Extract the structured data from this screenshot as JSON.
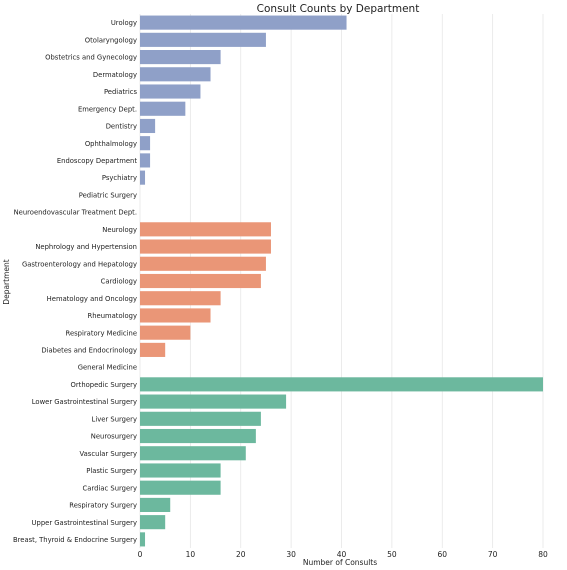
{
  "chart_data": {
    "type": "bar",
    "orientation": "horizontal",
    "title": "Consult Counts by Department",
    "xlabel": "Number of Consults",
    "ylabel": "Department",
    "xlim": [
      0,
      80
    ],
    "xticks": [
      0,
      10,
      20,
      30,
      40,
      50,
      60,
      70,
      80
    ],
    "grid": "vertical",
    "legend": "none",
    "categories": [
      "Urology",
      "Otolaryngology",
      "Obstetrics and Gynecology",
      "Dermatology",
      "Pediatrics",
      "Emergency Dept.",
      "Dentistry",
      "Ophthalmology",
      "Endoscopy Department",
      "Psychiatry",
      "Pediatric Surgery",
      "Neuroendovascular Treatment Dept.",
      "Neurology",
      "Nephrology and Hypertension",
      "Gastroenterology and Hepatology",
      "Cardiology",
      "Hematology and Oncology",
      "Rheumatology",
      "Respiratory Medicine",
      "Diabetes and Endocrinology",
      "General Medicine",
      "Orthopedic Surgery",
      "Lower Gastrointestinal Surgery",
      "Liver Surgery",
      "Neurosurgery",
      "Vascular Surgery",
      "Plastic Surgery",
      "Cardiac Surgery",
      "Respiratory Surgery",
      "Upper Gastrointestinal Surgery",
      "Breast, Thyroid & Endocrine Surgery"
    ],
    "values": [
      41,
      25,
      16,
      14,
      12,
      9,
      3,
      2,
      2,
      1,
      0,
      0,
      26,
      26,
      25,
      24,
      16,
      14,
      10,
      5,
      0,
      80,
      29,
      24,
      23,
      21,
      16,
      16,
      6,
      5,
      1
    ],
    "bar_colors": [
      "#8fa0c8",
      "#8fa0c8",
      "#8fa0c8",
      "#8fa0c8",
      "#8fa0c8",
      "#8fa0c8",
      "#8fa0c8",
      "#8fa0c8",
      "#8fa0c8",
      "#8fa0c8",
      "#8fa0c8",
      "#8fa0c8",
      "#ea9677",
      "#ea9677",
      "#ea9677",
      "#ea9677",
      "#ea9677",
      "#ea9677",
      "#ea9677",
      "#ea9677",
      "#ea9677",
      "#6cb89e",
      "#6cb89e",
      "#6cb89e",
      "#6cb89e",
      "#6cb89e",
      "#6cb89e",
      "#6cb89e",
      "#6cb89e",
      "#6cb89e",
      "#6cb89e"
    ]
  }
}
